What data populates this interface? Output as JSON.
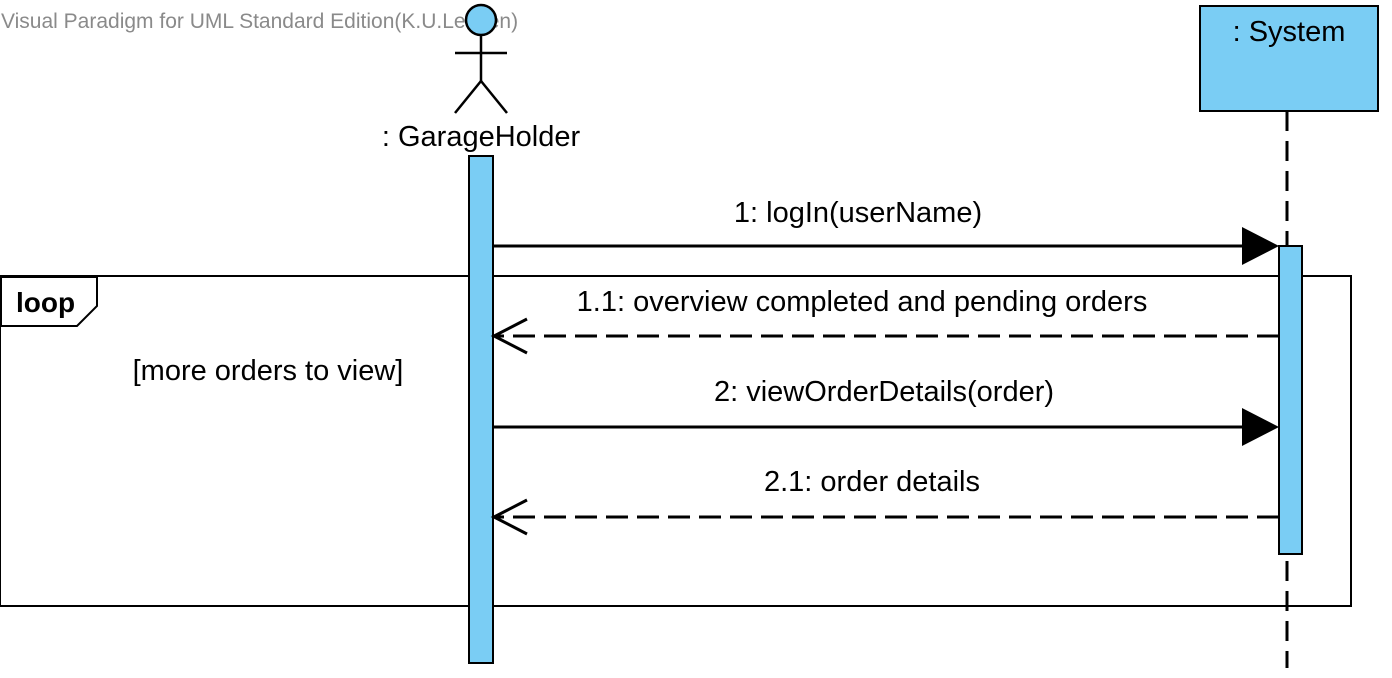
{
  "watermark": "Visual Paradigm for UML Standard Edition(K.U.Leuven)",
  "colors": {
    "fill": "#7acdf4",
    "stroke": "#000000",
    "watermark": "#8a8a8a"
  },
  "actor": {
    "label": ": GarageHolder",
    "icon": "stick-figure-actor-icon"
  },
  "system": {
    "label": ": System"
  },
  "fragment": {
    "operator": "loop",
    "guard": "[more orders to view]"
  },
  "messages": [
    {
      "label": "1: logIn(userName)",
      "kind": "synchronous"
    },
    {
      "label": "1.1: overview completed and pending orders",
      "kind": "reply"
    },
    {
      "label": "2: viewOrderDetails(order)",
      "kind": "synchronous"
    },
    {
      "label": "2.1: order details",
      "kind": "reply"
    }
  ]
}
